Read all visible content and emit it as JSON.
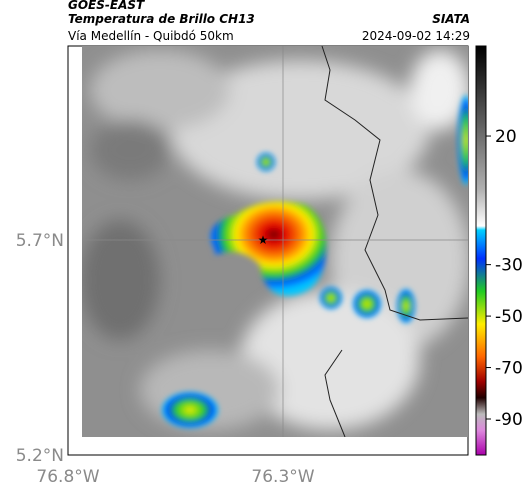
{
  "header": {
    "title": "GOES-EAST",
    "subtitle": "Temperatura de Brillo CH13",
    "brand": "SIATA",
    "route": "Vía Medellín - Quibdó 50km",
    "datetime": "2024-09-02 14:29"
  },
  "map": {
    "lat_labels": [
      "5.7°N",
      "5.2°N"
    ],
    "lon_labels": [
      "76.8°W",
      "76.3°W"
    ]
  },
  "colorbar": {
    "lim": [
      55,
      -104
    ],
    "ticks": [
      20,
      -30,
      -50,
      -70,
      -90
    ]
  }
}
